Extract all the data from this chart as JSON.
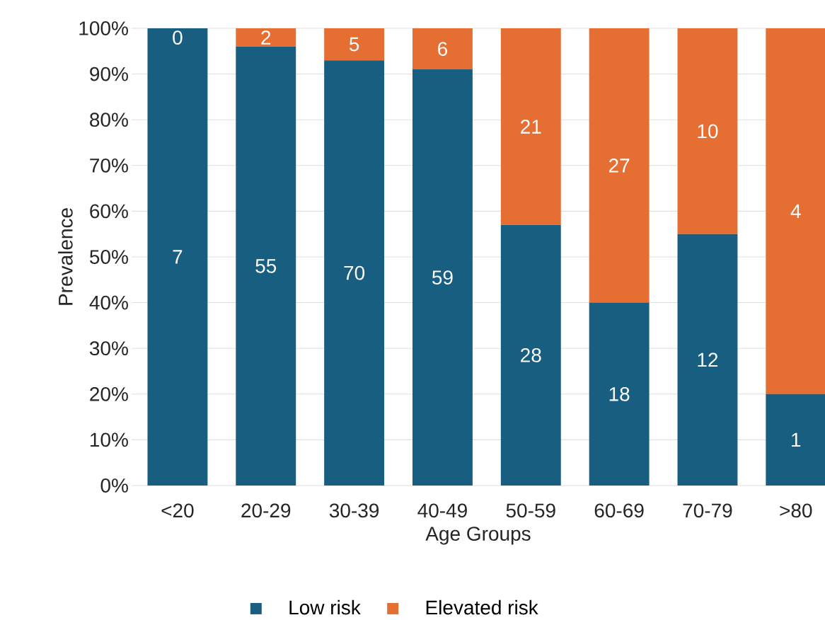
{
  "chart_data": {
    "type": "bar",
    "stacked": true,
    "xlabel": "Age Groups",
    "ylabel": "Prevalence",
    "categories": [
      "<20",
      "20-29",
      "30-39",
      "40-49",
      "50-59",
      "60-69",
      "70-79",
      ">80"
    ],
    "series": [
      {
        "name": "Low risk",
        "color": "#175e80",
        "values": [
          100,
          96,
          93,
          91,
          57,
          40,
          55,
          20
        ]
      },
      {
        "name": "Elevated risk",
        "color": "#e56e33",
        "values": [
          0,
          4,
          7,
          9,
          43,
          60,
          45,
          80
        ]
      }
    ],
    "annotations": [
      "7",
      "55",
      "70",
      "59",
      "28",
      "18",
      "12",
      "1",
      "0",
      "2",
      "5",
      "6",
      "21",
      "27",
      "10",
      "4"
    ],
    "ylim": [
      0,
      100
    ],
    "yticks": [
      {
        "value": 0,
        "label": "0%"
      },
      {
        "value": 10,
        "label": "10%"
      },
      {
        "value": 20,
        "label": "20%"
      },
      {
        "value": 30,
        "label": "30%"
      },
      {
        "value": 40,
        "label": "40%"
      },
      {
        "value": 50,
        "label": "50%"
      },
      {
        "value": 60,
        "label": "60%"
      },
      {
        "value": 70,
        "label": "70%"
      },
      {
        "value": 80,
        "label": "80%"
      },
      {
        "value": 90,
        "label": "90%"
      },
      {
        "value": 100,
        "label": "100%"
      }
    ],
    "grid": "y",
    "legend": "bottom"
  }
}
